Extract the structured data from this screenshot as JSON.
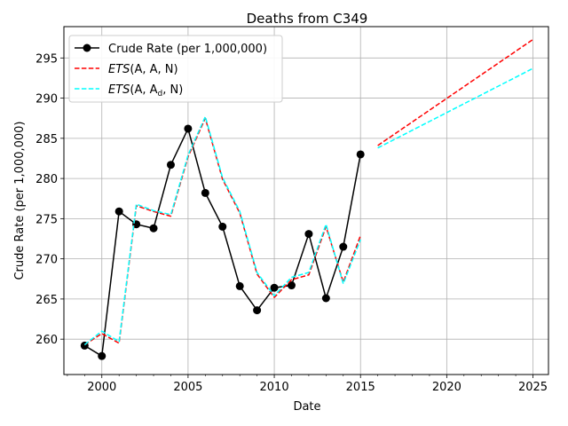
{
  "chart_data": {
    "type": "line",
    "title": "Deaths from C349",
    "xlabel": "Date",
    "ylabel": "Crude Rate (per 1,000,000)",
    "xlim": [
      1997.8,
      2025.9
    ],
    "ylim": [
      255.6,
      298.9
    ],
    "xticks": [
      2000,
      2005,
      2010,
      2015,
      2020,
      2025
    ],
    "yticks": [
      260,
      265,
      270,
      275,
      280,
      285,
      290,
      295
    ],
    "grid": true,
    "legend_position": "top-left",
    "legend": {
      "observed": "Crude Rate (per 1,000,000)",
      "ets_aan": {
        "base": "ETS",
        "args": "(A, A, N)"
      },
      "ets_aadn": {
        "base": "ETS",
        "pre": "(A, A",
        "sub": "d",
        "post": ", N)"
      }
    },
    "series": [
      {
        "key": "observed",
        "color": "#000000",
        "style": "solid-marker",
        "x": [
          1999,
          2000,
          2001,
          2002,
          2003,
          2004,
          2005,
          2006,
          2007,
          2008,
          2009,
          2010,
          2011,
          2012,
          2013,
          2014,
          2015
        ],
        "values": [
          259.2,
          257.9,
          275.9,
          274.3,
          273.8,
          281.7,
          286.2,
          278.2,
          274.0,
          266.6,
          263.6,
          266.4,
          266.7,
          273.1,
          265.1,
          271.5,
          283.0
        ]
      },
      {
        "key": "ets_aan_fit",
        "color": "#ff0000",
        "style": "dashed",
        "x": [
          1999,
          2000,
          2001,
          2002,
          2003,
          2004,
          2005,
          2006,
          2007,
          2008,
          2009,
          2010,
          2011,
          2012,
          2013,
          2014,
          2015
        ],
        "values": [
          259.3,
          260.7,
          259.5,
          276.6,
          275.9,
          275.3,
          282.7,
          287.5,
          279.9,
          275.7,
          268.1,
          265.2,
          267.4,
          268.0,
          274.0,
          267.1,
          272.9
        ]
      },
      {
        "key": "ets_aan_forecast",
        "color": "#ff0000",
        "style": "dashed",
        "x": [
          2016,
          2025
        ],
        "values": [
          284.1,
          297.3
        ]
      },
      {
        "key": "ets_aadn_fit",
        "color": "#00ffff",
        "style": "dashed",
        "x": [
          1999,
          2000,
          2001,
          2002,
          2003,
          2004,
          2005,
          2006,
          2007,
          2008,
          2009,
          2010,
          2011,
          2012,
          2013,
          2014,
          2015
        ],
        "values": [
          259.3,
          261.0,
          259.7,
          276.8,
          276.0,
          275.5,
          282.9,
          287.7,
          280.1,
          275.9,
          268.3,
          265.4,
          267.7,
          268.3,
          274.3,
          266.9,
          272.4
        ]
      },
      {
        "key": "ets_aadn_forecast",
        "color": "#00ffff",
        "style": "dashed",
        "x": [
          2016,
          2025
        ],
        "values": [
          283.8,
          293.7
        ]
      }
    ]
  }
}
